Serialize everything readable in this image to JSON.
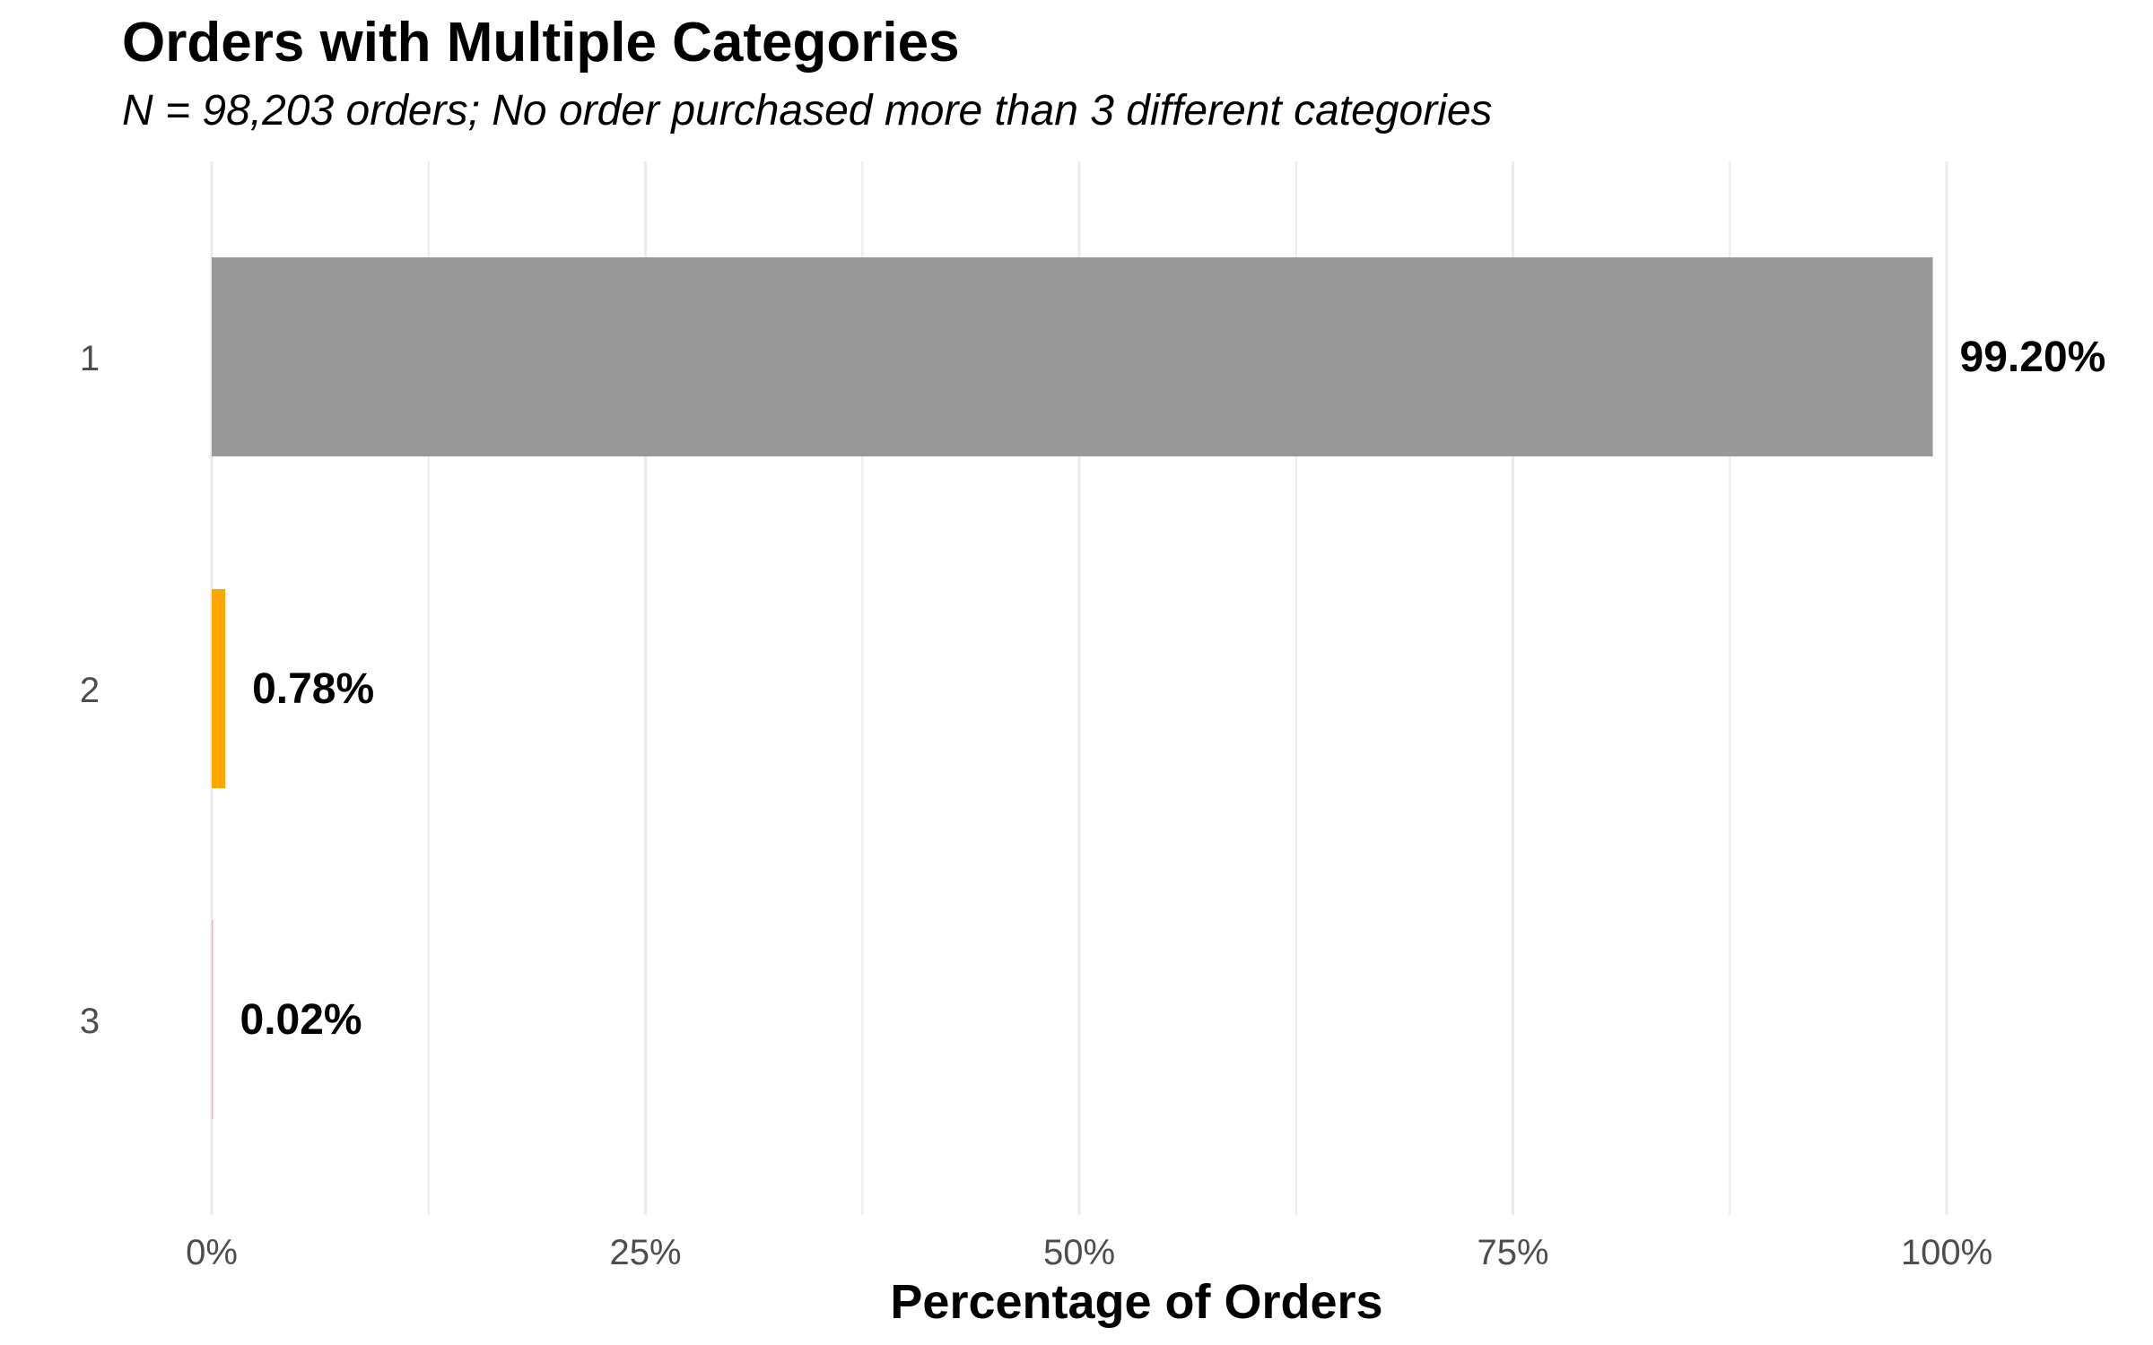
{
  "chart_data": {
    "type": "bar",
    "orientation": "horizontal",
    "title": "Orders with Multiple Categories",
    "subtitle": "N = 98,203 orders; No order purchased more than 3 different categories",
    "xlabel": "Percentage of Orders",
    "ylabel": "",
    "xlim": [
      0,
      100
    ],
    "x_ticks": [
      0,
      25,
      50,
      75,
      100
    ],
    "x_tick_labels": [
      "0%",
      "25%",
      "50%",
      "75%",
      "100%"
    ],
    "categories": [
      "1",
      "2",
      "3"
    ],
    "values": [
      99.2,
      0.78,
      0.02
    ],
    "data_labels": [
      "99.20%",
      "0.78%",
      "0.02%"
    ],
    "bar_colors": [
      "#999999",
      "#FFA500",
      "#E8B4C0"
    ],
    "grid": true,
    "legend": "none"
  },
  "colors": {
    "gridline": "#EBEBEB",
    "tick_text": "#4D4D4D",
    "label_text": "#000000"
  }
}
